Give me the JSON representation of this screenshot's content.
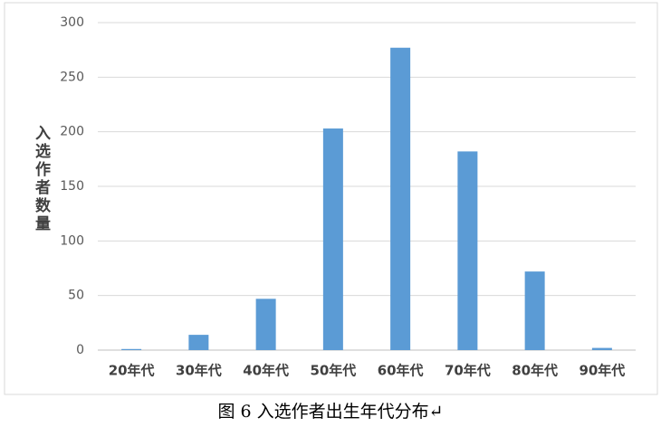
{
  "chart_data": {
    "type": "bar",
    "caption": "图 6 入选作者出生年代分布↵",
    "y_label": "入选作者数量",
    "categories": [
      "20年代",
      "30年代",
      "40年代",
      "50年代",
      "60年代",
      "70年代",
      "80年代",
      "90年代"
    ],
    "values": [
      1,
      14,
      47,
      203,
      277,
      182,
      72,
      2
    ],
    "color": "#5b9bd5",
    "ylim": [
      0,
      300
    ],
    "yticks": [
      0,
      50,
      100,
      150,
      200,
      250,
      300
    ],
    "grid": true
  }
}
